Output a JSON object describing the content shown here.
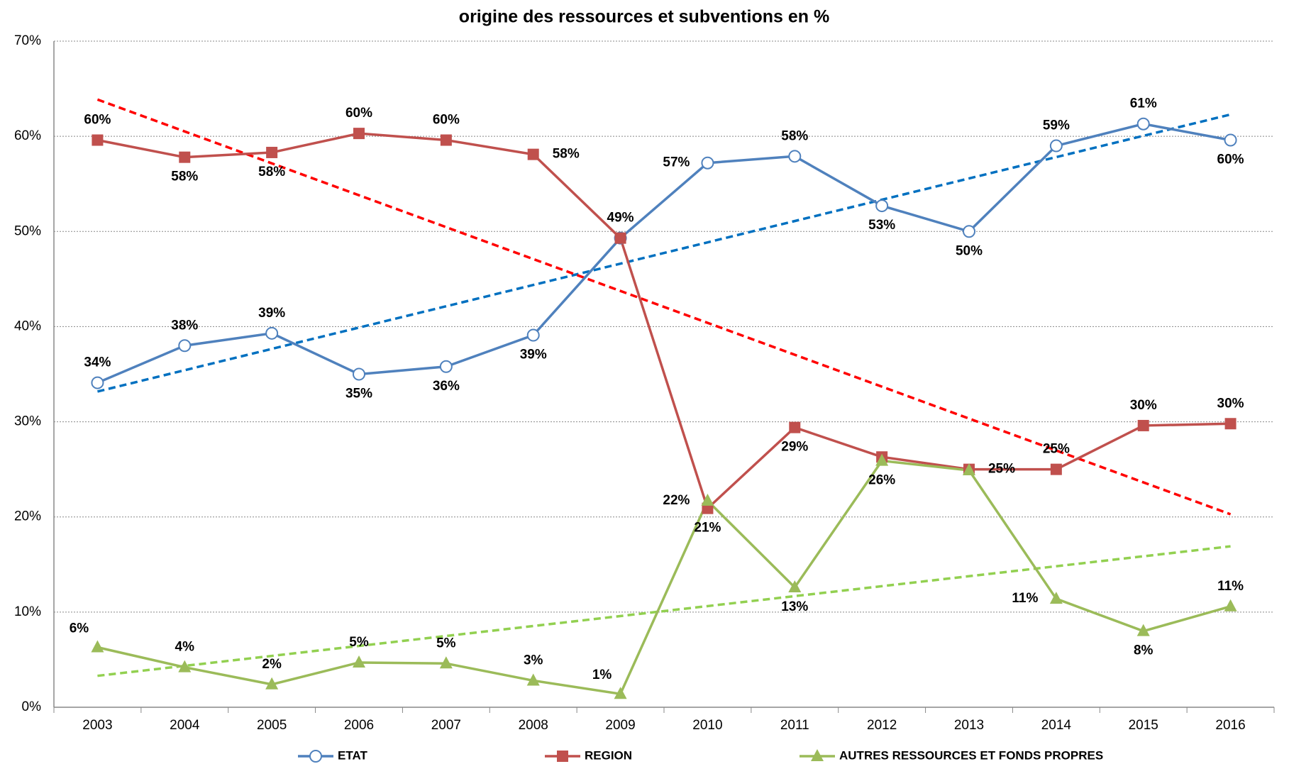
{
  "chart_data": {
    "type": "line",
    "title": "origine des ressources et subventions en %",
    "categories": [
      "2003",
      "2004",
      "2005",
      "2006",
      "2007",
      "2008",
      "2009",
      "2010",
      "2011",
      "2012",
      "2013",
      "2014",
      "2015",
      "2016"
    ],
    "ylim": [
      0,
      70
    ],
    "yticks": [
      {
        "value": 0,
        "label": "0%"
      },
      {
        "value": 10,
        "label": "10%"
      },
      {
        "value": 20,
        "label": "20%"
      },
      {
        "value": 30,
        "label": "30%"
      },
      {
        "value": 40,
        "label": "40%"
      },
      {
        "value": 50,
        "label": "50%"
      },
      {
        "value": 60,
        "label": "60%"
      },
      {
        "value": 70,
        "label": "70%"
      }
    ],
    "grid": true,
    "legend": "bottom",
    "series": [
      {
        "name": "ETAT",
        "color": "#4f81bd",
        "marker": "circle",
        "trendline": {
          "color": "#0070c0"
        },
        "values": [
          34.1,
          38.0,
          39.3,
          35.0,
          35.8,
          39.1,
          49.3,
          57.2,
          57.9,
          52.7,
          50.0,
          59.0,
          61.3,
          59.6
        ],
        "value_labels": [
          "34%",
          "38%",
          "39%",
          "35%",
          "36%",
          "39%",
          "49%",
          "57%",
          "58%",
          "53%",
          "50%",
          "59%",
          "61%",
          "60%"
        ]
      },
      {
        "name": "REGION",
        "color": "#c0504d",
        "marker": "square",
        "trendline": {
          "color": "#ff0000"
        },
        "values": [
          59.6,
          57.8,
          58.3,
          60.3,
          59.6,
          58.1,
          49.3,
          20.9,
          29.4,
          26.3,
          25.0,
          25.0,
          29.6,
          29.8
        ],
        "value_labels": [
          "60%",
          "58%",
          "58%",
          "60%",
          "60%",
          "58%",
          null,
          "21%",
          "29%",
          null,
          "25%",
          "25%",
          "30%",
          "30%"
        ]
      },
      {
        "name": "AUTRES RESSOURCES ET FONDS PROPRES",
        "color": "#9bbb59",
        "marker": "triangle",
        "trendline": {
          "color": "#92d050"
        },
        "values": [
          6.3,
          4.2,
          2.4,
          4.7,
          4.6,
          2.8,
          1.4,
          21.7,
          12.6,
          25.9,
          24.9,
          11.4,
          8.0,
          10.6
        ],
        "value_labels": [
          "6%",
          "4%",
          "2%",
          "5%",
          "5%",
          "3%",
          "1%",
          "22%",
          "13%",
          "26%",
          null,
          "11%",
          "8%",
          "11%"
        ]
      }
    ]
  }
}
